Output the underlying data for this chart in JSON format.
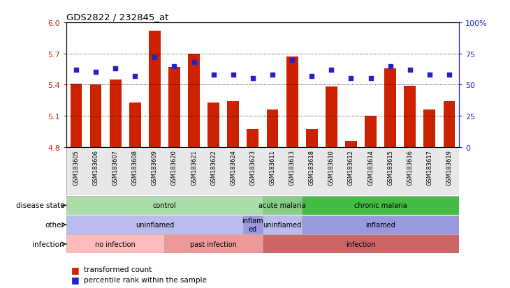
{
  "title": "GDS2822 / 232845_at",
  "samples": [
    "GSM183605",
    "GSM183606",
    "GSM183607",
    "GSM183608",
    "GSM183609",
    "GSM183620",
    "GSM183621",
    "GSM183622",
    "GSM183624",
    "GSM183623",
    "GSM183611",
    "GSM183613",
    "GSM183618",
    "GSM183610",
    "GSM183612",
    "GSM183614",
    "GSM183615",
    "GSM183616",
    "GSM183617",
    "GSM183619"
  ],
  "bar_values": [
    5.41,
    5.4,
    5.45,
    5.23,
    5.92,
    5.57,
    5.7,
    5.23,
    5.24,
    4.97,
    5.16,
    5.67,
    4.97,
    5.38,
    4.86,
    5.1,
    5.56,
    5.39,
    5.16,
    5.24
  ],
  "dot_values": [
    62,
    60,
    63,
    57,
    72,
    65,
    68,
    58,
    58,
    55,
    58,
    70,
    57,
    62,
    55,
    55,
    65,
    62,
    58,
    58
  ],
  "ymin": 4.8,
  "ymax": 6.0,
  "yticks": [
    4.8,
    5.1,
    5.4,
    5.7,
    6.0
  ],
  "right_yticks": [
    0,
    25,
    50,
    75,
    100
  ],
  "right_ytick_labels": [
    "0",
    "25",
    "50",
    "75",
    "100%"
  ],
  "bar_color": "#cc2200",
  "dot_color": "#2222cc",
  "bar_width": 0.6,
  "disease_state_groups": [
    {
      "label": "control",
      "start": 0,
      "end": 10,
      "color": "#aaddaa"
    },
    {
      "label": "acute malaria",
      "start": 10,
      "end": 12,
      "color": "#88cc88"
    },
    {
      "label": "chronic malaria",
      "start": 12,
      "end": 20,
      "color": "#44bb44"
    }
  ],
  "other_groups": [
    {
      "label": "uninflamed",
      "start": 0,
      "end": 9,
      "color": "#bbbbee"
    },
    {
      "label": "inflam\ned",
      "start": 9,
      "end": 10,
      "color": "#9999dd"
    },
    {
      "label": "uninflamed",
      "start": 10,
      "end": 12,
      "color": "#bbbbee"
    },
    {
      "label": "inflamed",
      "start": 12,
      "end": 20,
      "color": "#9999dd"
    }
  ],
  "infection_groups": [
    {
      "label": "no infection",
      "start": 0,
      "end": 5,
      "color": "#ffbbbb"
    },
    {
      "label": "past infection",
      "start": 5,
      "end": 10,
      "color": "#ee9999"
    },
    {
      "label": "infection",
      "start": 10,
      "end": 20,
      "color": "#cc6666"
    }
  ],
  "row_labels": [
    "disease state",
    "other",
    "infection"
  ],
  "legend_items": [
    {
      "color": "#cc2200",
      "label": "transformed count"
    },
    {
      "color": "#2222cc",
      "label": "percentile rank within the sample"
    }
  ]
}
